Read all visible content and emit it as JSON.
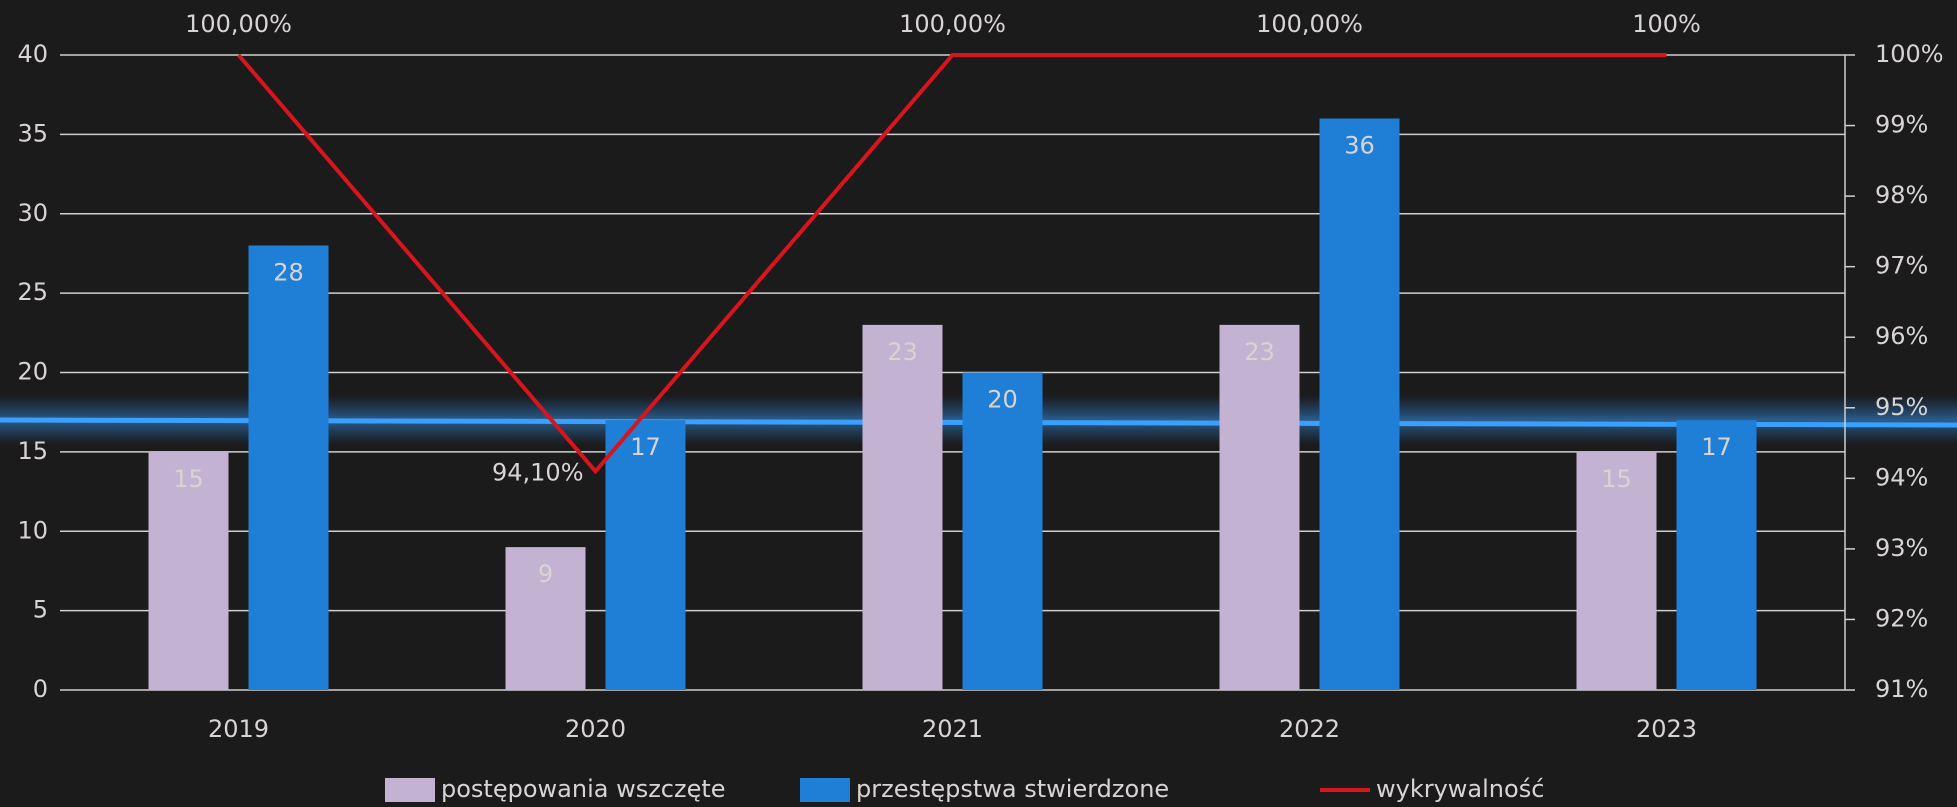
{
  "chart_data": {
    "type": "bar",
    "categories": [
      "2019",
      "2020",
      "2021",
      "2022",
      "2023"
    ],
    "series": [
      {
        "name": "postępowania wszczęte",
        "color": "#c4b2d2",
        "values": [
          15,
          9,
          23,
          23,
          15
        ]
      },
      {
        "name": "przestępstwa stwierdzone",
        "color": "#1f7fd6",
        "values": [
          28,
          17,
          20,
          36,
          17
        ]
      },
      {
        "name": "wykrywalność",
        "color": "#d8141c",
        "type": "line",
        "axis": "y2",
        "values": [
          100,
          94.1,
          100,
          100,
          100
        ],
        "value_labels": [
          "100,00%",
          "94,10%",
          "100,00%",
          "100,00%",
          "100%"
        ]
      }
    ],
    "ylim": [
      0,
      40
    ],
    "yticks": [
      0,
      5,
      10,
      15,
      20,
      25,
      30,
      35,
      40
    ],
    "y2lim": [
      91,
      100
    ],
    "y2ticks": [
      {
        "value": 91,
        "label": "91%"
      },
      {
        "value": 92,
        "label": "92%"
      },
      {
        "value": 93,
        "label": "93%"
      },
      {
        "value": 94,
        "label": "94%"
      },
      {
        "value": 95,
        "label": "95%"
      },
      {
        "value": 96,
        "label": "96%"
      },
      {
        "value": 97,
        "label": "97%"
      },
      {
        "value": 98,
        "label": "98%"
      },
      {
        "value": 99,
        "label": "99%"
      },
      {
        "value": 100,
        "label": "100%"
      }
    ],
    "grid": true,
    "legend": "bottom"
  }
}
